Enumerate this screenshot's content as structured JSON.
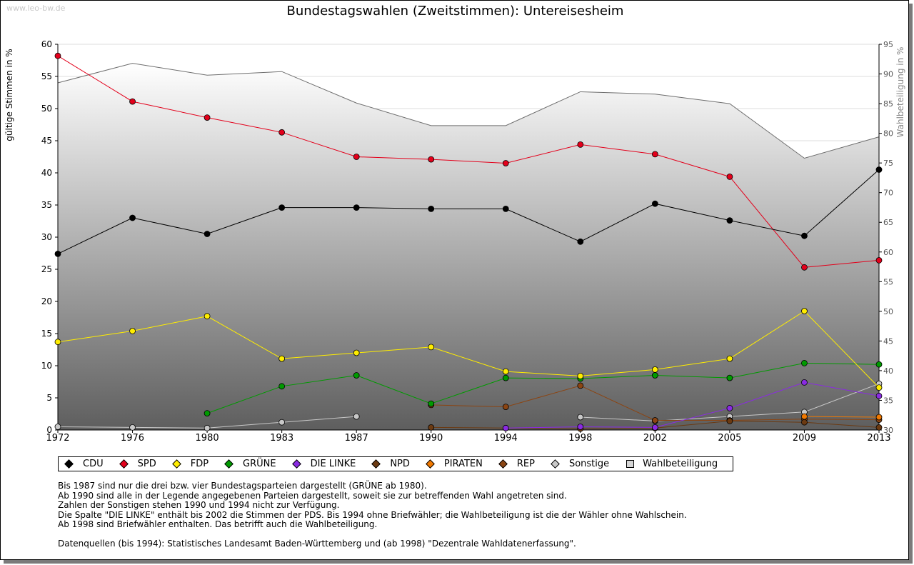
{
  "watermark": "www.leo-bw.de",
  "title": "Bundestagswahlen (Zweitstimmen): Untereisesheim",
  "chart_data": {
    "type": "line",
    "title": "Bundestagswahlen (Zweitstimmen): Untereisesheim",
    "ylabel": "gültige Stimmen in %",
    "y2label": "Wahlbeteiligung in %",
    "ylim": [
      0,
      60
    ],
    "y2lim": [
      30,
      95
    ],
    "yticks": [
      "0",
      "5",
      "10",
      "15",
      "20",
      "25",
      "30",
      "35",
      "40",
      "45",
      "50",
      "55",
      "60"
    ],
    "y2ticks": [
      "30",
      "35",
      "40",
      "45",
      "50",
      "55",
      "60",
      "65",
      "70",
      "75",
      "80",
      "85",
      "90",
      "95"
    ],
    "x": [
      "1972",
      "1976",
      "1980",
      "1983",
      "1987",
      "1990",
      "1994",
      "1998",
      "2002",
      "2005",
      "2009",
      "2013"
    ],
    "grid": true,
    "legend_position": "bottom",
    "series": [
      {
        "name": "CDU",
        "color": "#000000",
        "values": [
          27.4,
          33.0,
          30.5,
          34.6,
          34.6,
          34.4,
          34.4,
          29.3,
          35.2,
          32.6,
          30.2,
          40.5
        ]
      },
      {
        "name": "SPD",
        "color": "#e3001b",
        "values": [
          58.2,
          51.1,
          48.6,
          46.3,
          42.5,
          42.1,
          41.5,
          44.4,
          42.9,
          39.4,
          25.3,
          26.4
        ]
      },
      {
        "name": "FDP",
        "color": "#ffed00",
        "values": [
          13.7,
          15.4,
          17.7,
          11.1,
          12.0,
          12.9,
          9.1,
          8.4,
          9.4,
          11.1,
          18.5,
          6.6
        ]
      },
      {
        "name": "GRÜNE",
        "color": "#009a00",
        "values": [
          null,
          null,
          2.6,
          6.8,
          8.5,
          4.1,
          8.1,
          8.0,
          8.5,
          8.1,
          10.4,
          10.2
        ]
      },
      {
        "name": "DIE LINKE",
        "color": "#8a2be2",
        "values": [
          null,
          null,
          null,
          null,
          null,
          null,
          0.3,
          0.5,
          0.4,
          3.4,
          7.4,
          5.3
        ]
      },
      {
        "name": "NPD",
        "color": "#6b3a12",
        "values": [
          null,
          null,
          null,
          null,
          null,
          0.4,
          0.3,
          0.2,
          0.3,
          1.4,
          1.2,
          0.4
        ]
      },
      {
        "name": "PIRATEN",
        "color": "#f07800",
        "values": [
          null,
          null,
          null,
          null,
          null,
          null,
          null,
          null,
          null,
          null,
          2.1,
          2.0
        ]
      },
      {
        "name": "REP",
        "color": "#8b4513",
        "values": [
          null,
          null,
          null,
          null,
          null,
          3.9,
          3.6,
          6.9,
          1.5,
          1.5,
          1.7,
          1.6
        ]
      },
      {
        "name": "Sonstige",
        "color": "#c8c8c8",
        "values": [
          0.5,
          0.4,
          0.3,
          1.2,
          2.1,
          null,
          null,
          2.0,
          1.4,
          2.1,
          2.8,
          7.2
        ]
      }
    ],
    "turnout": {
      "name": "Wahlbeteiligung",
      "axis": "right",
      "values": [
        88.5,
        91.8,
        89.8,
        90.4,
        85.1,
        81.3,
        81.3,
        87.0,
        86.6,
        85.0,
        75.8,
        79.4
      ]
    }
  },
  "legend": {
    "items": [
      {
        "label": "CDU",
        "color": "#000000"
      },
      {
        "label": "SPD",
        "color": "#e3001b"
      },
      {
        "label": "FDP",
        "color": "#ffed00"
      },
      {
        "label": "GRÜNE",
        "color": "#009a00"
      },
      {
        "label": "DIE LINKE",
        "color": "#8a2be2"
      },
      {
        "label": "NPD",
        "color": "#6b3a12"
      },
      {
        "label": "PIRATEN",
        "color": "#f07800"
      },
      {
        "label": "REP",
        "color": "#8b4513"
      },
      {
        "label": "Sonstige",
        "color": "#c8c8c8"
      }
    ],
    "turnout_label": "Wahlbeteiligung"
  },
  "notes": {
    "line1": "Bis 1987 sind nur die drei bzw. vier Bundestagsparteien dargestellt (GRÜNE ab 1980).",
    "line2": "Ab 1990 sind alle in der Legende angegebenen Parteien dargestellt, soweit sie zur betreffenden Wahl angetreten sind.",
    "line3": "Zahlen der Sonstigen stehen 1990 und 1994 nicht zur Verfügung.",
    "line4": "Die Spalte \"DIE LINKE\" enthält bis 2002 die Stimmen der PDS. Bis 1994 ohne Briefwähler; die Wahlbeteiligung ist die der Wähler ohne Wahlschein.",
    "line5": "Ab 1998 sind Briefwähler enthalten. Das betrifft auch die Wahlbeteiligung.",
    "line6": "Datenquellen (bis 1994): Statistisches Landesamt Baden-Württemberg und (ab 1998) \"Dezentrale Wahldatenerfassung\"."
  }
}
